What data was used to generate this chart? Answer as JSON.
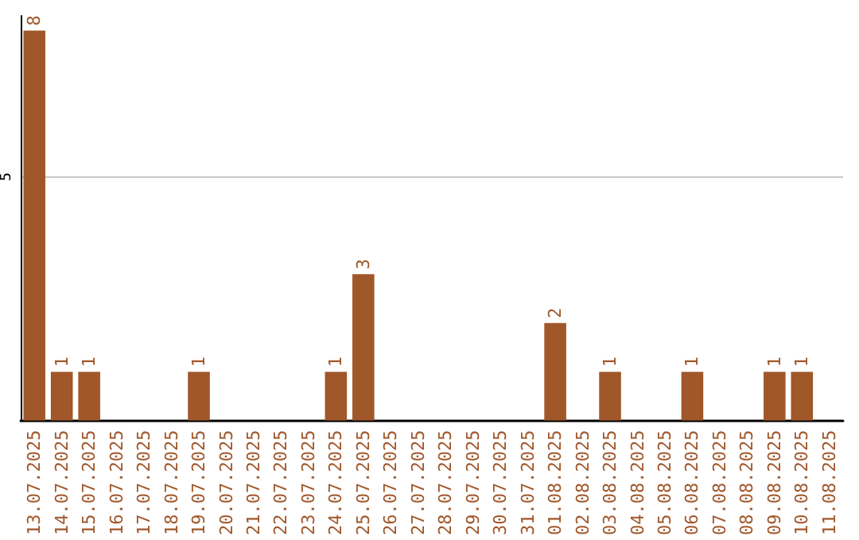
{
  "chart_data": {
    "type": "bar",
    "categories": [
      "13.07.2025",
      "14.07.2025",
      "15.07.2025",
      "16.07.2025",
      "17.07.2025",
      "18.07.2025",
      "19.07.2025",
      "20.07.2025",
      "21.07.2025",
      "22.07.2025",
      "23.07.2025",
      "24.07.2025",
      "25.07.2025",
      "26.07.2025",
      "27.07.2025",
      "28.07.2025",
      "29.07.2025",
      "30.07.2025",
      "31.07.2025",
      "01.08.2025",
      "02.08.2025",
      "03.08.2025",
      "04.08.2025",
      "05.08.2025",
      "06.08.2025",
      "07.08.2025",
      "08.08.2025",
      "09.08.2025",
      "10.08.2025",
      "11.08.2025"
    ],
    "values": [
      8,
      1,
      1,
      0,
      0,
      0,
      1,
      0,
      0,
      0,
      0,
      1,
      3,
      0,
      0,
      0,
      0,
      0,
      0,
      2,
      0,
      1,
      0,
      0,
      1,
      0,
      0,
      1,
      1,
      0
    ],
    "value_labels": [
      "8",
      "1",
      "1",
      null,
      null,
      null,
      "1",
      null,
      null,
      null,
      null,
      "1",
      "3",
      null,
      null,
      null,
      null,
      null,
      null,
      "2",
      null,
      "1",
      null,
      null,
      "1",
      null,
      null,
      "1",
      "1",
      null
    ],
    "color": "#a0572a",
    "ylim": [
      0,
      8.3
    ],
    "yticks": [
      5
    ],
    "grid": "y"
  }
}
